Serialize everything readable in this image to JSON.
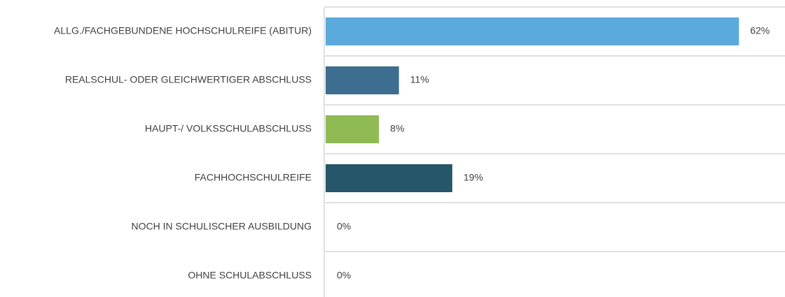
{
  "chart_data": {
    "type": "bar",
    "orientation": "horizontal",
    "categories": [
      "ALLG./FACHGEBUNDENE HOCHSCHULREIFE (ABITUR)",
      "REALSCHUL- ODER GLEICHWERTIGER ABSCHLUSS",
      "HAUPT-/ VOLKSSCHULABSCHLUSS",
      "FACHHOCHSCHULREIFE",
      "NOCH IN SCHULISCHER AUSBILDUNG",
      "OHNE SCHULABSCHLUSS"
    ],
    "values": [
      62,
      11,
      8,
      19,
      0,
      0
    ],
    "value_labels": [
      "62%",
      "11%",
      "8%",
      "19%",
      "0%",
      "0%"
    ],
    "colors": [
      "#5aaadc",
      "#3d6e8f",
      "#8fba54",
      "#25566a"
    ],
    "grid": true
  }
}
